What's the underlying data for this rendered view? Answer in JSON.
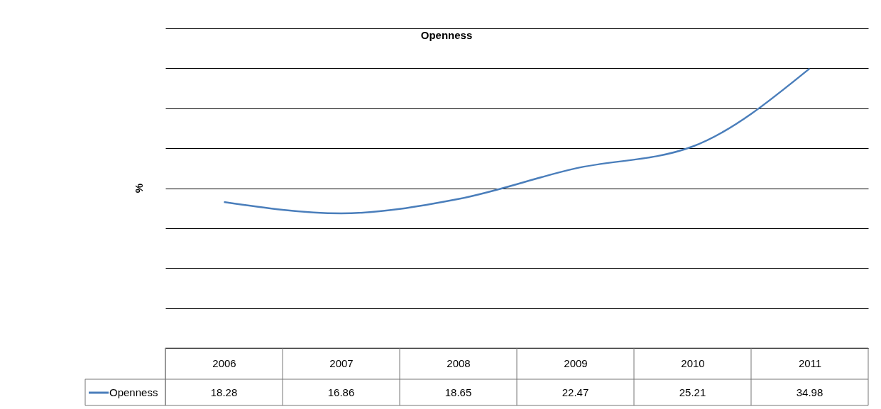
{
  "chart_data": {
    "type": "line",
    "title": "Openness",
    "ylabel": "%",
    "categories": [
      "2006",
      "2007",
      "2008",
      "2009",
      "2010",
      "2011"
    ],
    "series": [
      {
        "name": "Openness",
        "color": "#4a7ebb",
        "values": [
          18.28,
          16.86,
          18.65,
          22.47,
          25.21,
          34.98
        ]
      }
    ],
    "ylim": [
      0,
      40
    ],
    "yticks": [
      {
        "value": 0,
        "label": null
      },
      {
        "value": 5,
        "label": null
      },
      {
        "value": 10,
        "label": null
      },
      {
        "value": 15,
        "label": null
      },
      {
        "value": 20,
        "label": null
      },
      {
        "value": 25,
        "label": null
      },
      {
        "value": 30,
        "label": null
      },
      {
        "value": 35,
        "label": null
      },
      {
        "value": 40,
        "label": null
      }
    ],
    "tick_labels": "x",
    "grid": "y",
    "data_labels": true,
    "legend": "bottom",
    "marker": "none",
    "line_style": "solid"
  }
}
